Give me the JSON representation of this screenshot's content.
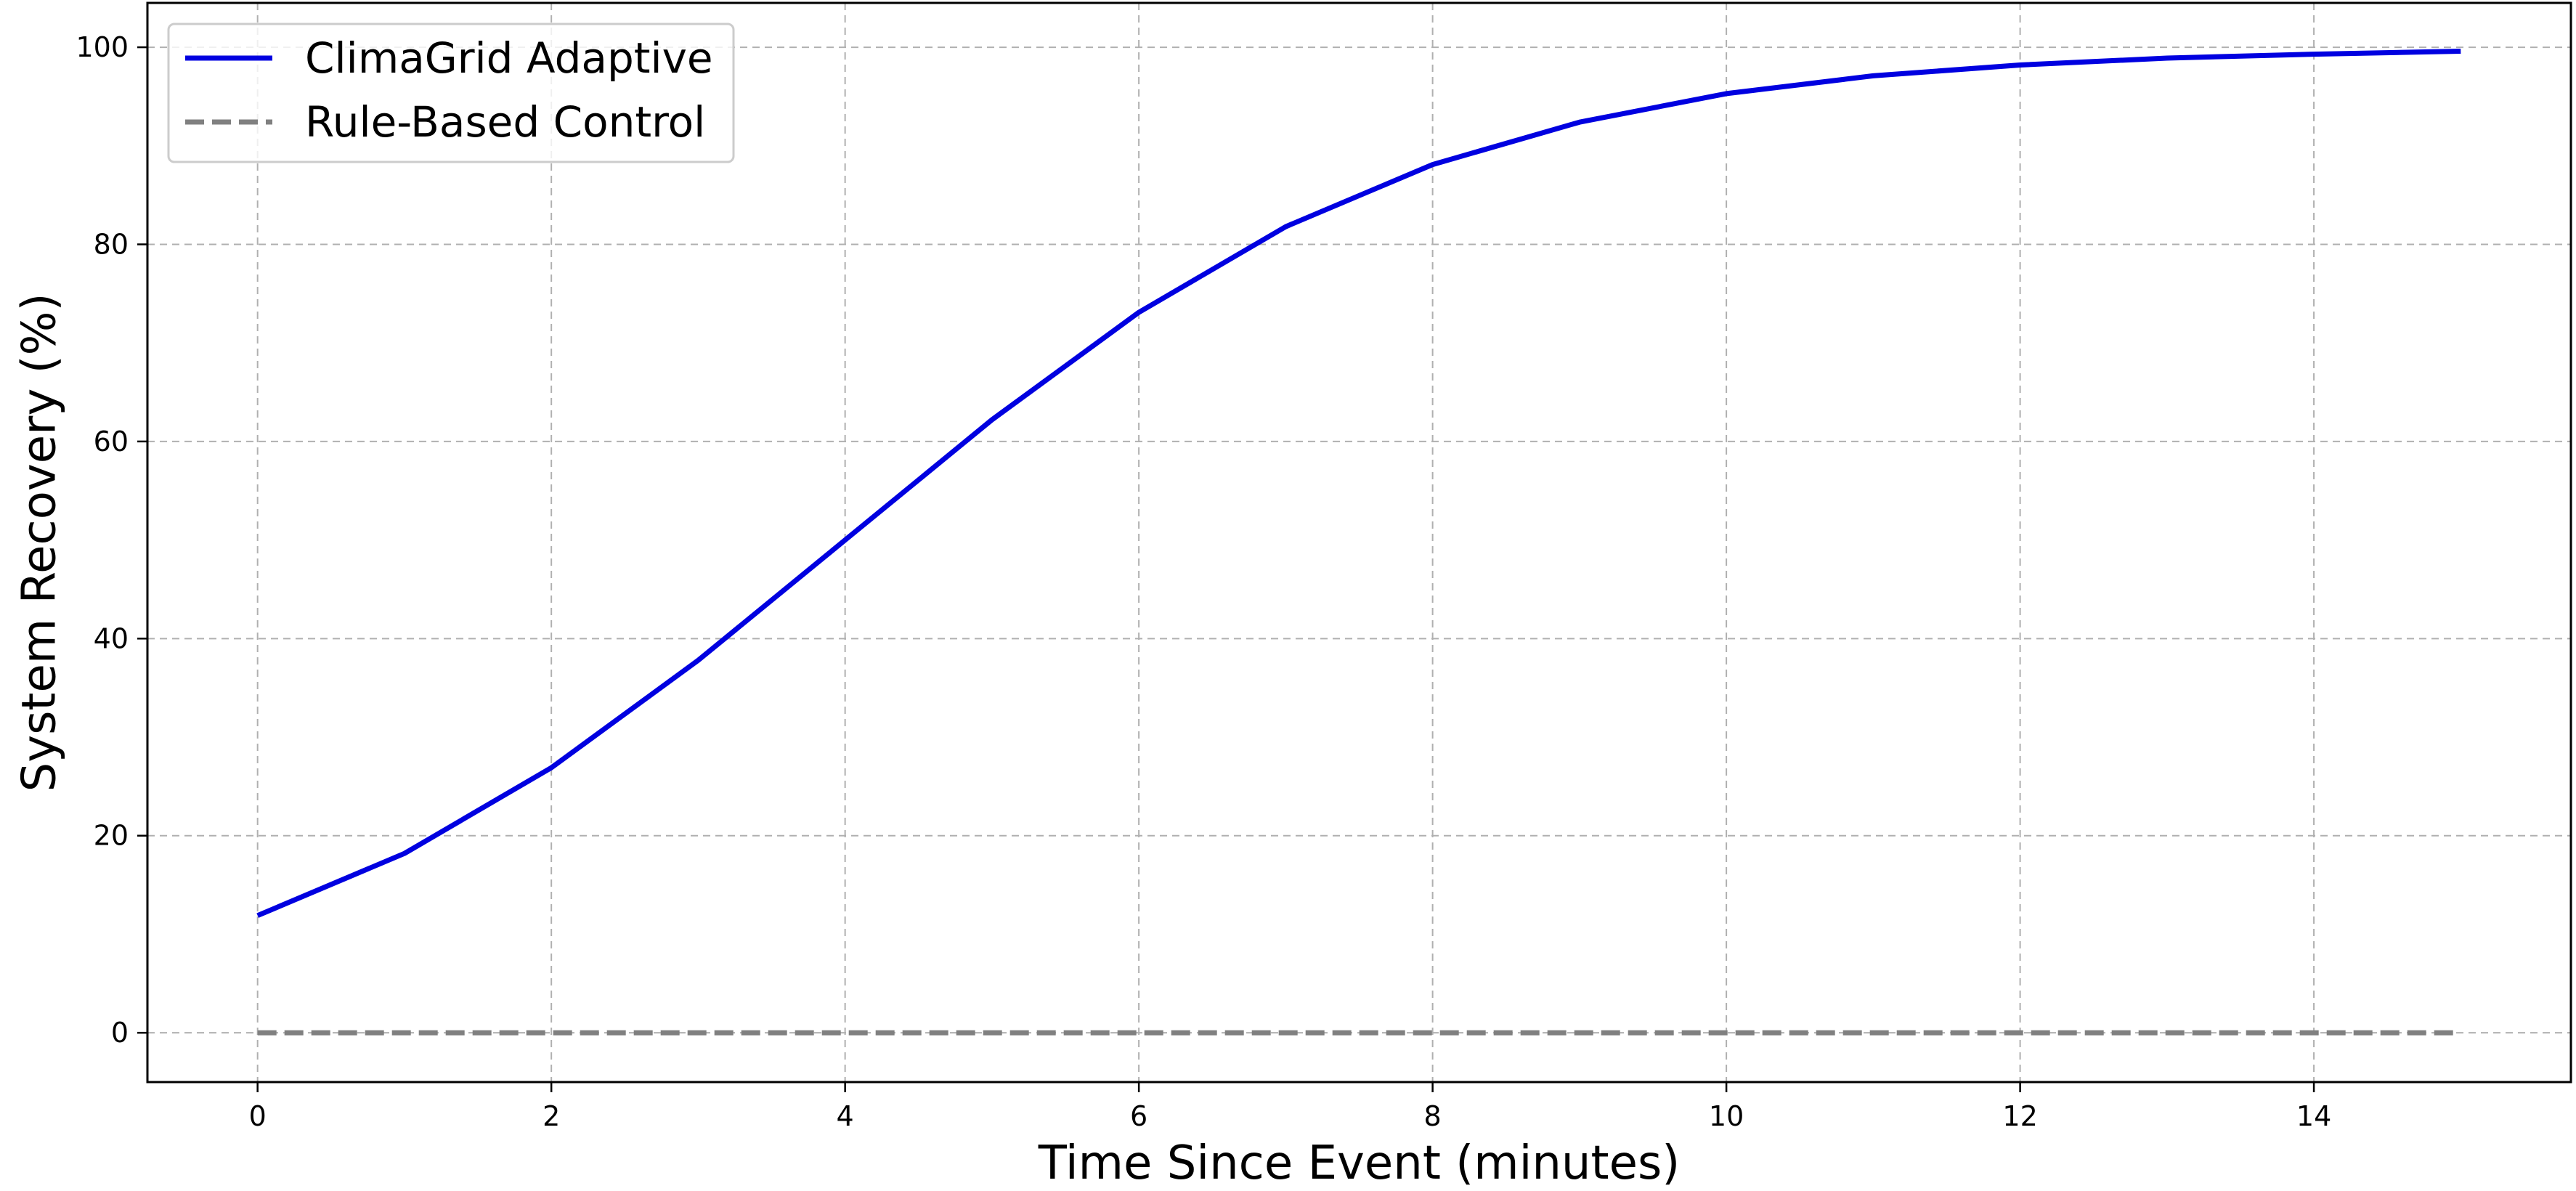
{
  "chart_data": {
    "type": "line",
    "title": "",
    "xlabel": "Time Since Event (minutes)",
    "ylabel": "System Recovery (%)",
    "xlim": [
      -0.75,
      15.75
    ],
    "ylim": [
      -5,
      104.5
    ],
    "x_ticks": [
      0,
      2,
      4,
      6,
      8,
      10,
      12,
      14
    ],
    "y_ticks": [
      0,
      20,
      40,
      60,
      80,
      100
    ],
    "grid": true,
    "legend_position": "top-left",
    "x": [
      0,
      1,
      2,
      3,
      4,
      5,
      6,
      7,
      8,
      9,
      10,
      11,
      12,
      13,
      14,
      15
    ],
    "series": [
      {
        "name": "ClimaGrid Adaptive",
        "color": "#0000e0",
        "style": "solid",
        "values": [
          11.9,
          18.2,
          26.9,
          37.8,
          50.0,
          62.2,
          73.1,
          81.8,
          88.1,
          92.4,
          95.3,
          97.1,
          98.2,
          98.9,
          99.3,
          99.6
        ]
      },
      {
        "name": "Rule-Based Control",
        "color": "#808080",
        "style": "dashed",
        "values": [
          0,
          0,
          0,
          0,
          0,
          0,
          0,
          0,
          0,
          0,
          0,
          0,
          0,
          0,
          0,
          0
        ]
      }
    ]
  }
}
